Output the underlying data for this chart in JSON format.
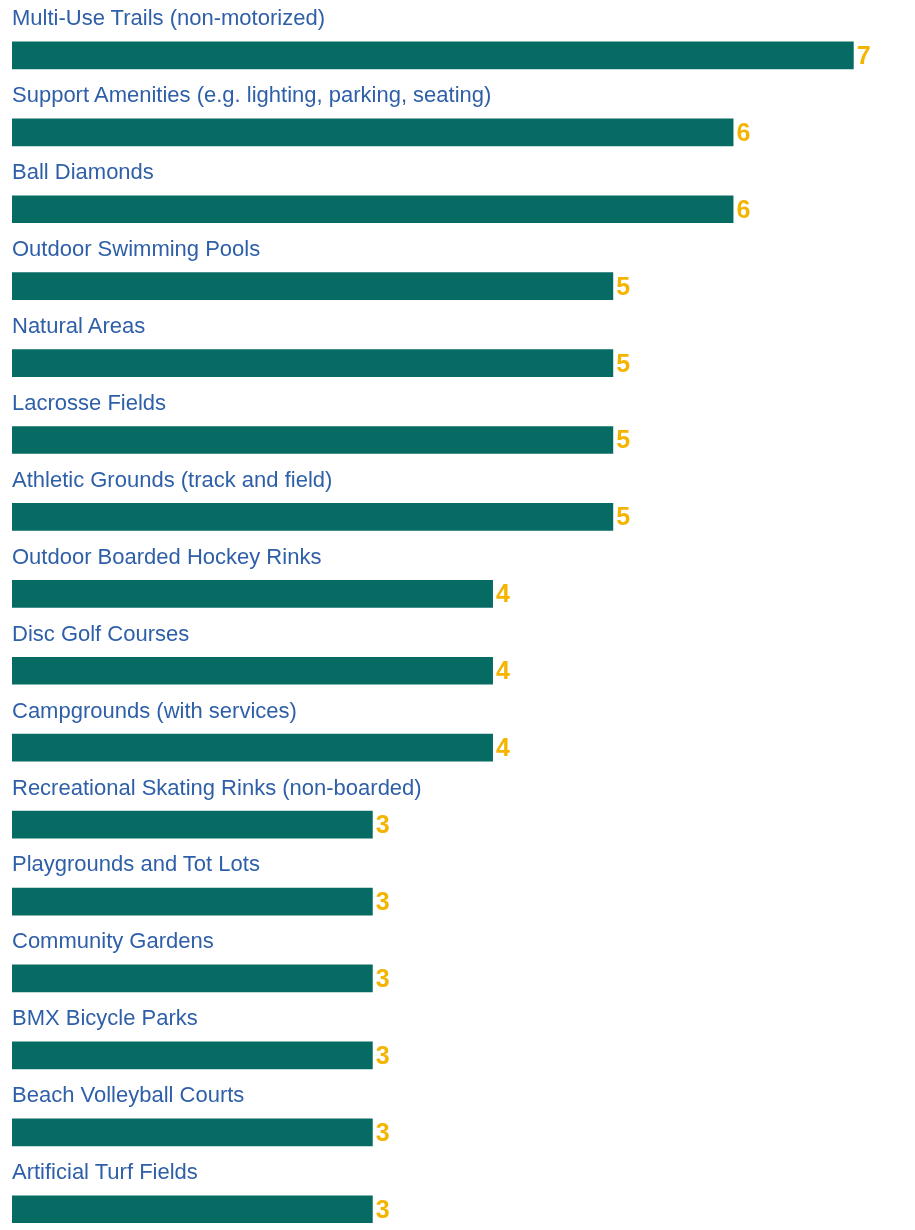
{
  "chart_data": {
    "type": "bar",
    "orientation": "horizontal",
    "data_labels": true,
    "legend": false,
    "categories": [
      "Multi-Use Trails (non-motorized)",
      "Support Amenities (e.g. lighting, parking, seating)",
      "Ball Diamonds",
      "Outdoor Swimming Pools",
      "Natural Areas",
      "Lacrosse Fields",
      "Athletic Grounds (track and field)",
      "Outdoor Boarded Hockey Rinks",
      "Disc Golf Courses",
      "Campgrounds (with services)",
      "Recreational Skating Rinks (non-boarded)",
      "Playgrounds and Tot Lots",
      "Community Gardens",
      "BMX Bicycle Parks",
      "Beach Volleyball Courts",
      "Artificial Turf Fields"
    ],
    "values": [
      7,
      6,
      6,
      5,
      5,
      5,
      5,
      4,
      4,
      4,
      3,
      3,
      3,
      3,
      3,
      3
    ],
    "color": "#066b63"
  }
}
